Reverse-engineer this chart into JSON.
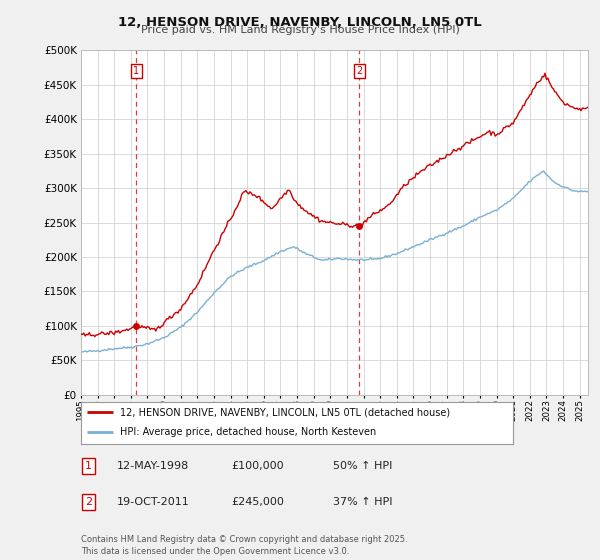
{
  "title": "12, HENSON DRIVE, NAVENBY, LINCOLN, LN5 0TL",
  "subtitle": "Price paid vs. HM Land Registry's House Price Index (HPI)",
  "legend_line1": "12, HENSON DRIVE, NAVENBY, LINCOLN, LN5 0TL (detached house)",
  "legend_line2": "HPI: Average price, detached house, North Kesteven",
  "annotation1_label": "1",
  "annotation1_date": "12-MAY-1998",
  "annotation1_price": "£100,000",
  "annotation1_hpi": "50% ↑ HPI",
  "annotation2_label": "2",
  "annotation2_date": "19-OCT-2011",
  "annotation2_price": "£245,000",
  "annotation2_hpi": "37% ↑ HPI",
  "footer": "Contains HM Land Registry data © Crown copyright and database right 2025.\nThis data is licensed under the Open Government Licence v3.0.",
  "property_color": "#cc0000",
  "hpi_color": "#7ab0d4",
  "vline_color": "#cc0000",
  "background_color": "#f0f0f0",
  "plot_bg_color": "#ffffff",
  "ylim": [
    0,
    500000
  ],
  "yticks": [
    0,
    50000,
    100000,
    150000,
    200000,
    250000,
    300000,
    350000,
    400000,
    450000,
    500000
  ],
  "t1": 1998.333,
  "t2": 2011.75,
  "p1": 100000,
  "p2": 245000,
  "hpi_keypoints": [
    [
      1995.0,
      62000
    ],
    [
      1996.0,
      64000
    ],
    [
      1997.0,
      67000
    ],
    [
      1998.0,
      69000
    ],
    [
      1999.0,
      74000
    ],
    [
      2000.0,
      83000
    ],
    [
      2001.0,
      98000
    ],
    [
      2002.0,
      120000
    ],
    [
      2003.0,
      148000
    ],
    [
      2004.0,
      172000
    ],
    [
      2005.0,
      185000
    ],
    [
      2006.0,
      195000
    ],
    [
      2007.0,
      208000
    ],
    [
      2007.8,
      215000
    ],
    [
      2008.5,
      205000
    ],
    [
      2009.5,
      195000
    ],
    [
      2010.5,
      198000
    ],
    [
      2011.5,
      196000
    ],
    [
      2012.5,
      196000
    ],
    [
      2013.0,
      198000
    ],
    [
      2014.0,
      205000
    ],
    [
      2015.0,
      215000
    ],
    [
      2016.0,
      225000
    ],
    [
      2017.0,
      235000
    ],
    [
      2018.0,
      245000
    ],
    [
      2019.0,
      258000
    ],
    [
      2020.0,
      268000
    ],
    [
      2021.0,
      285000
    ],
    [
      2022.0,
      310000
    ],
    [
      2022.8,
      325000
    ],
    [
      2023.5,
      308000
    ],
    [
      2024.5,
      297000
    ],
    [
      2025.0,
      295000
    ]
  ],
  "prop_keypoints": [
    [
      1995.0,
      86000
    ],
    [
      1996.0,
      88000
    ],
    [
      1997.0,
      90000
    ],
    [
      1998.0,
      96000
    ],
    [
      1998.33,
      100000
    ],
    [
      1999.0,
      96000
    ],
    [
      1999.5,
      94000
    ],
    [
      2000.0,
      105000
    ],
    [
      2001.0,
      125000
    ],
    [
      2002.0,
      160000
    ],
    [
      2003.0,
      210000
    ],
    [
      2004.0,
      255000
    ],
    [
      2004.8,
      295000
    ],
    [
      2005.5,
      290000
    ],
    [
      2006.5,
      270000
    ],
    [
      2007.0,
      285000
    ],
    [
      2007.5,
      298000
    ],
    [
      2008.0,
      278000
    ],
    [
      2008.8,
      262000
    ],
    [
      2009.5,
      252000
    ],
    [
      2010.5,
      248000
    ],
    [
      2011.75,
      245000
    ],
    [
      2012.5,
      260000
    ],
    [
      2013.5,
      275000
    ],
    [
      2014.5,
      305000
    ],
    [
      2015.5,
      325000
    ],
    [
      2016.5,
      340000
    ],
    [
      2017.5,
      355000
    ],
    [
      2018.5,
      368000
    ],
    [
      2019.5,
      382000
    ],
    [
      2020.0,
      378000
    ],
    [
      2021.0,
      395000
    ],
    [
      2021.5,
      415000
    ],
    [
      2022.0,
      435000
    ],
    [
      2022.5,
      455000
    ],
    [
      2022.9,
      465000
    ],
    [
      2023.5,
      440000
    ],
    [
      2024.0,
      425000
    ],
    [
      2024.5,
      418000
    ],
    [
      2025.0,
      415000
    ]
  ]
}
